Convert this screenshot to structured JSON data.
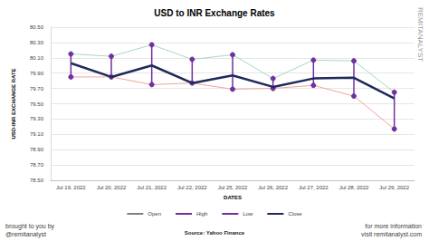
{
  "chart_data": {
    "type": "line",
    "title": "USD to INR Exchange Rates",
    "x_label": "DATES",
    "y_label": "USD-INR EXCHANGE RATE",
    "categories": [
      "Jul 19, 2022",
      "Jul 20, 2022",
      "Jul 21, 2022",
      "Jul 22, 2022",
      "Jul 25, 2022",
      "Jul 26, 2022",
      "Jul 27, 2022",
      "Jul 28, 2022",
      "Jul 29, 2022"
    ],
    "series": [
      {
        "name": "Open",
        "color": "#808080",
        "line_style": "thin",
        "values": [
          80.03,
          79.85,
          80.0,
          79.77,
          79.87,
          79.72,
          79.83,
          79.84,
          79.57
        ]
      },
      {
        "name": "High",
        "color": "#a8d8c2",
        "line_style": "thin",
        "marker": "circle",
        "values": [
          80.15,
          80.12,
          80.27,
          80.08,
          80.14,
          79.83,
          80.07,
          80.06,
          79.65
        ]
      },
      {
        "name": "Low",
        "color": "#f2a39c",
        "line_style": "thin",
        "marker": "circle",
        "values": [
          79.85,
          79.85,
          79.75,
          79.77,
          79.69,
          79.7,
          79.74,
          79.6,
          79.17
        ]
      },
      {
        "name": "Close",
        "color": "#1f2a5c",
        "line_style": "thick",
        "values": [
          80.03,
          79.85,
          80.0,
          79.77,
          79.87,
          79.72,
          79.83,
          79.84,
          79.57
        ]
      }
    ],
    "ylim": [
      78.5,
      80.5
    ],
    "yticks": [
      {
        "value": 78.5,
        "label": "78.50"
      },
      {
        "value": 78.7,
        "label": "78.70"
      },
      {
        "value": 78.9,
        "label": "78.90"
      },
      {
        "value": 79.1,
        "label": "79.10"
      },
      {
        "value": 79.3,
        "label": "79.30"
      },
      {
        "value": 79.5,
        "label": "79.50"
      },
      {
        "value": 79.7,
        "label": "79.70"
      },
      {
        "value": 79.9,
        "label": "79.90"
      },
      {
        "value": 80.1,
        "label": "80.10"
      },
      {
        "value": 80.3,
        "label": "80.30"
      },
      {
        "value": 80.5,
        "label": "80.50"
      }
    ],
    "grid": true,
    "legend": "bottom",
    "annotations": [
      "Source: Yahoo Finance",
      "brought to you by",
      "@remitanalyst",
      "for more information",
      "visit remitanalyst.com",
      "REMITANALYST"
    ]
  }
}
